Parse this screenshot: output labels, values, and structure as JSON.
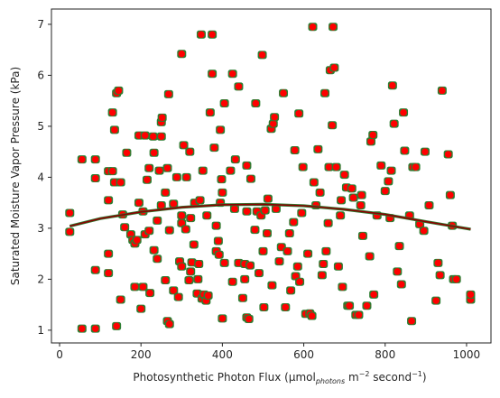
{
  "chart_data": {
    "type": "scatter",
    "title": "",
    "xlabel": "Photosynthetic Photon Flux (µmol",
    "xlabel_subscript": "photons",
    "xlabel_tail_a": " m",
    "xlabel_sup_a": "−2",
    "xlabel_tail_b": " second",
    "xlabel_sup_b": "−1",
    "xlabel_close": ")",
    "ylabel": "Saturated Moisture Vapor Pressure (kPa)",
    "xlim": [
      -20,
      1060
    ],
    "ylim": [
      0.75,
      7.3
    ],
    "xticks": [
      0,
      200,
      400,
      600,
      800,
      1000
    ],
    "yticks": [
      1,
      2,
      3,
      4,
      5,
      6,
      7
    ],
    "grid": false,
    "colors": {
      "outer_marker": "#2e7d32",
      "inner_marker": "#ff0000",
      "fit_line_outer": "#2e7d32",
      "fit_line_inner": "#8b0000"
    },
    "fit_curve": {
      "x": [
        25,
        100,
        200,
        300,
        400,
        500,
        600,
        700,
        800,
        900,
        1010
      ],
      "y": [
        3.04,
        3.19,
        3.32,
        3.41,
        3.46,
        3.47,
        3.44,
        3.37,
        3.27,
        3.13,
        2.98
      ]
    },
    "points": [
      [
        25,
        2.93
      ],
      [
        25,
        3.3
      ],
      [
        55,
        1.03
      ],
      [
        55,
        4.35
      ],
      [
        88,
        1.03
      ],
      [
        88,
        2.18
      ],
      [
        88,
        3.98
      ],
      [
        88,
        4.35
      ],
      [
        120,
        2.12
      ],
      [
        120,
        2.5
      ],
      [
        120,
        3.55
      ],
      [
        120,
        4.12
      ],
      [
        130,
        4.12
      ],
      [
        130,
        5.27
      ],
      [
        135,
        3.9
      ],
      [
        135,
        4.93
      ],
      [
        140,
        1.08
      ],
      [
        140,
        5.65
      ],
      [
        145,
        5.7
      ],
      [
        150,
        1.6
      ],
      [
        150,
        3.9
      ],
      [
        155,
        3.27
      ],
      [
        160,
        3.02
      ],
      [
        165,
        4.48
      ],
      [
        175,
        2.88
      ],
      [
        180,
        2.77
      ],
      [
        185,
        2.7
      ],
      [
        185,
        1.85
      ],
      [
        190,
        2.77
      ],
      [
        195,
        3.5
      ],
      [
        195,
        4.82
      ],
      [
        200,
        1.42
      ],
      [
        205,
        1.85
      ],
      [
        205,
        3.33
      ],
      [
        210,
        2.88
      ],
      [
        210,
        4.82
      ],
      [
        215,
        3.95
      ],
      [
        220,
        2.95
      ],
      [
        220,
        4.18
      ],
      [
        222,
        1.73
      ],
      [
        230,
        4.8
      ],
      [
        232,
        2.57
      ],
      [
        232,
        4.48
      ],
      [
        240,
        2.4
      ],
      [
        240,
        3.15
      ],
      [
        245,
        4.13
      ],
      [
        250,
        3.45
      ],
      [
        250,
        4.8
      ],
      [
        250,
        5.08
      ],
      [
        252,
        5.17
      ],
      [
        260,
        1.98
      ],
      [
        260,
        3.7
      ],
      [
        265,
        1.18
      ],
      [
        265,
        4.18
      ],
      [
        268,
        5.63
      ],
      [
        270,
        1.12
      ],
      [
        270,
        2.96
      ],
      [
        280,
        1.78
      ],
      [
        280,
        3.48
      ],
      [
        288,
        4.0
      ],
      [
        292,
        1.65
      ],
      [
        295,
        2.35
      ],
      [
        300,
        2.25
      ],
      [
        300,
        3.1
      ],
      [
        300,
        3.25
      ],
      [
        300,
        6.42
      ],
      [
        305,
        4.63
      ],
      [
        310,
        2.98
      ],
      [
        312,
        4.0
      ],
      [
        318,
        1.98
      ],
      [
        320,
        4.5
      ],
      [
        322,
        2.15
      ],
      [
        322,
        3.2
      ],
      [
        325,
        2.33
      ],
      [
        330,
        2.68
      ],
      [
        332,
        3.5
      ],
      [
        338,
        1.72
      ],
      [
        340,
        2.0
      ],
      [
        342,
        2.3
      ],
      [
        345,
        3.55
      ],
      [
        348,
        6.8
      ],
      [
        350,
        1.62
      ],
      [
        352,
        4.13
      ],
      [
        355,
        1.7
      ],
      [
        360,
        1.58
      ],
      [
        362,
        3.25
      ],
      [
        365,
        1.68
      ],
      [
        370,
        5.27
      ],
      [
        375,
        6.8
      ],
      [
        375,
        6.03
      ],
      [
        380,
        4.58
      ],
      [
        385,
        2.55
      ],
      [
        385,
        3.05
      ],
      [
        390,
        2.75
      ],
      [
        392,
        2.48
      ],
      [
        395,
        3.5
      ],
      [
        395,
        4.93
      ],
      [
        398,
        3.96
      ],
      [
        400,
        1.23
      ],
      [
        400,
        3.7
      ],
      [
        405,
        2.32
      ],
      [
        405,
        5.45
      ],
      [
        420,
        4.13
      ],
      [
        425,
        1.95
      ],
      [
        425,
        6.03
      ],
      [
        430,
        3.38
      ],
      [
        432,
        4.35
      ],
      [
        440,
        2.32
      ],
      [
        440,
        5.78
      ],
      [
        450,
        1.63
      ],
      [
        455,
        2.0
      ],
      [
        455,
        2.3
      ],
      [
        460,
        1.25
      ],
      [
        460,
        3.33
      ],
      [
        460,
        4.23
      ],
      [
        465,
        1.22
      ],
      [
        468,
        2.27
      ],
      [
        470,
        3.97
      ],
      [
        480,
        2.97
      ],
      [
        482,
        5.45
      ],
      [
        485,
        3.33
      ],
      [
        490,
        2.12
      ],
      [
        495,
        3.25
      ],
      [
        498,
        6.4
      ],
      [
        500,
        2.55
      ],
      [
        502,
        1.45
      ],
      [
        505,
        3.35
      ],
      [
        510,
        2.9
      ],
      [
        512,
        3.58
      ],
      [
        520,
        4.95
      ],
      [
        522,
        1.88
      ],
      [
        525,
        5.05
      ],
      [
        528,
        5.18
      ],
      [
        532,
        3.38
      ],
      [
        540,
        2.35
      ],
      [
        545,
        2.63
      ],
      [
        550,
        5.65
      ],
      [
        555,
        1.45
      ],
      [
        560,
        2.55
      ],
      [
        565,
        2.9
      ],
      [
        568,
        1.78
      ],
      [
        575,
        3.12
      ],
      [
        578,
        4.53
      ],
      [
        580,
        2.06
      ],
      [
        585,
        2.25
      ],
      [
        588,
        5.25
      ],
      [
        590,
        1.95
      ],
      [
        595,
        3.3
      ],
      [
        598,
        4.2
      ],
      [
        605,
        1.32
      ],
      [
        610,
        2.5
      ],
      [
        615,
        1.33
      ],
      [
        620,
        1.28
      ],
      [
        622,
        6.95
      ],
      [
        625,
        3.9
      ],
      [
        630,
        3.45
      ],
      [
        635,
        4.55
      ],
      [
        640,
        3.7
      ],
      [
        645,
        2.08
      ],
      [
        648,
        2.3
      ],
      [
        652,
        5.65
      ],
      [
        655,
        2.55
      ],
      [
        660,
        3.1
      ],
      [
        662,
        4.2
      ],
      [
        665,
        6.1
      ],
      [
        670,
        5.02
      ],
      [
        672,
        6.95
      ],
      [
        675,
        6.15
      ],
      [
        680,
        4.2
      ],
      [
        685,
        2.25
      ],
      [
        690,
        3.25
      ],
      [
        692,
        3.55
      ],
      [
        695,
        1.85
      ],
      [
        700,
        4.05
      ],
      [
        705,
        3.8
      ],
      [
        708,
        1.48
      ],
      [
        712,
        1.48
      ],
      [
        718,
        3.78
      ],
      [
        722,
        3.6
      ],
      [
        728,
        1.3
      ],
      [
        735,
        1.3
      ],
      [
        740,
        3.45
      ],
      [
        742,
        3.65
      ],
      [
        745,
        2.85
      ],
      [
        755,
        1.48
      ],
      [
        762,
        2.45
      ],
      [
        765,
        4.7
      ],
      [
        770,
        4.83
      ],
      [
        772,
        1.7
      ],
      [
        780,
        3.25
      ],
      [
        790,
        4.23
      ],
      [
        800,
        3.73
      ],
      [
        808,
        3.92
      ],
      [
        812,
        3.2
      ],
      [
        815,
        4.13
      ],
      [
        818,
        5.8
      ],
      [
        822,
        5.05
      ],
      [
        830,
        2.15
      ],
      [
        835,
        2.65
      ],
      [
        840,
        1.9
      ],
      [
        845,
        5.27
      ],
      [
        848,
        4.52
      ],
      [
        860,
        3.25
      ],
      [
        865,
        1.18
      ],
      [
        868,
        4.2
      ],
      [
        875,
        4.2
      ],
      [
        885,
        3.08
      ],
      [
        895,
        2.95
      ],
      [
        898,
        4.5
      ],
      [
        908,
        3.45
      ],
      [
        925,
        1.58
      ],
      [
        930,
        2.32
      ],
      [
        935,
        2.08
      ],
      [
        940,
        5.7
      ],
      [
        955,
        4.45
      ],
      [
        960,
        3.65
      ],
      [
        965,
        3.05
      ],
      [
        968,
        2.0
      ],
      [
        975,
        2.0
      ],
      [
        1010,
        1.6
      ],
      [
        1010,
        1.7
      ]
    ]
  }
}
